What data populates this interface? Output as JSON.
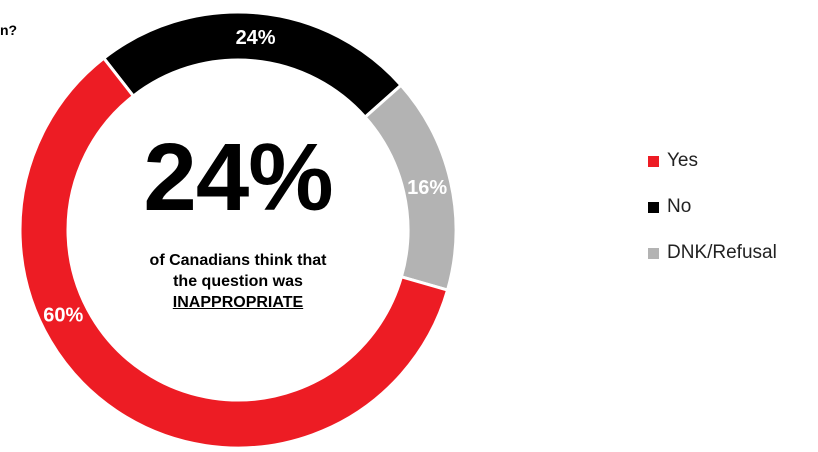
{
  "title_fragment": "n?",
  "headline": {
    "value": "24%",
    "caption_line1": "of Canadians think that",
    "caption_line2": "the question was",
    "caption_emphasis": "INAPPROPRIATE"
  },
  "chart_data": {
    "type": "pie",
    "donut": true,
    "categories": [
      "Yes",
      "No",
      "DNK/Refusal"
    ],
    "values": [
      60,
      24,
      16
    ],
    "data_labels": [
      "60%",
      "24%",
      "16%"
    ],
    "colors": [
      "#ed1c24",
      "#000000",
      "#b3b3b3"
    ],
    "label_colors": [
      "#ffffff",
      "#ffffff",
      "#ffffff"
    ],
    "start": "Yes segment begins at the upper-left, slices run clockwise: No, DNK/Refusal, Yes",
    "legend_position": "right"
  },
  "legend": {
    "items": [
      {
        "label": "Yes",
        "color": "#ed1c24"
      },
      {
        "label": "No",
        "color": "#000000"
      },
      {
        "label": "DNK/Refusal",
        "color": "#b3b3b3"
      }
    ]
  }
}
